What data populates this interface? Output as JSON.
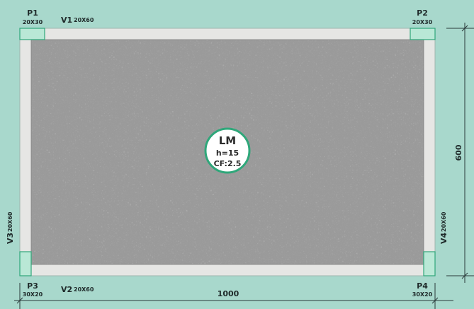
{
  "slab": {
    "name": "LM",
    "thickness": "h=15",
    "load_factor": "CF:2.5"
  },
  "columns": [
    {
      "id": "P1",
      "size": "20X30"
    },
    {
      "id": "P2",
      "size": "20X30"
    },
    {
      "id": "P3",
      "size": "30X20"
    },
    {
      "id": "P4",
      "size": "30X20"
    }
  ],
  "beams": [
    {
      "id": "V1",
      "size": "20X60"
    },
    {
      "id": "V2",
      "size": "20X60"
    },
    {
      "id": "V3",
      "size": "20X60"
    },
    {
      "id": "V4",
      "size": "20X60"
    }
  ],
  "dimensions": {
    "width": "1000",
    "height": "600"
  },
  "colors": {
    "background": "#a8d8cc",
    "beam": "#e6e6e4",
    "slab": "#9a9a9a",
    "column": "#b9e8d6",
    "accent": "#2fa77a",
    "line": "#2a3a3a"
  }
}
